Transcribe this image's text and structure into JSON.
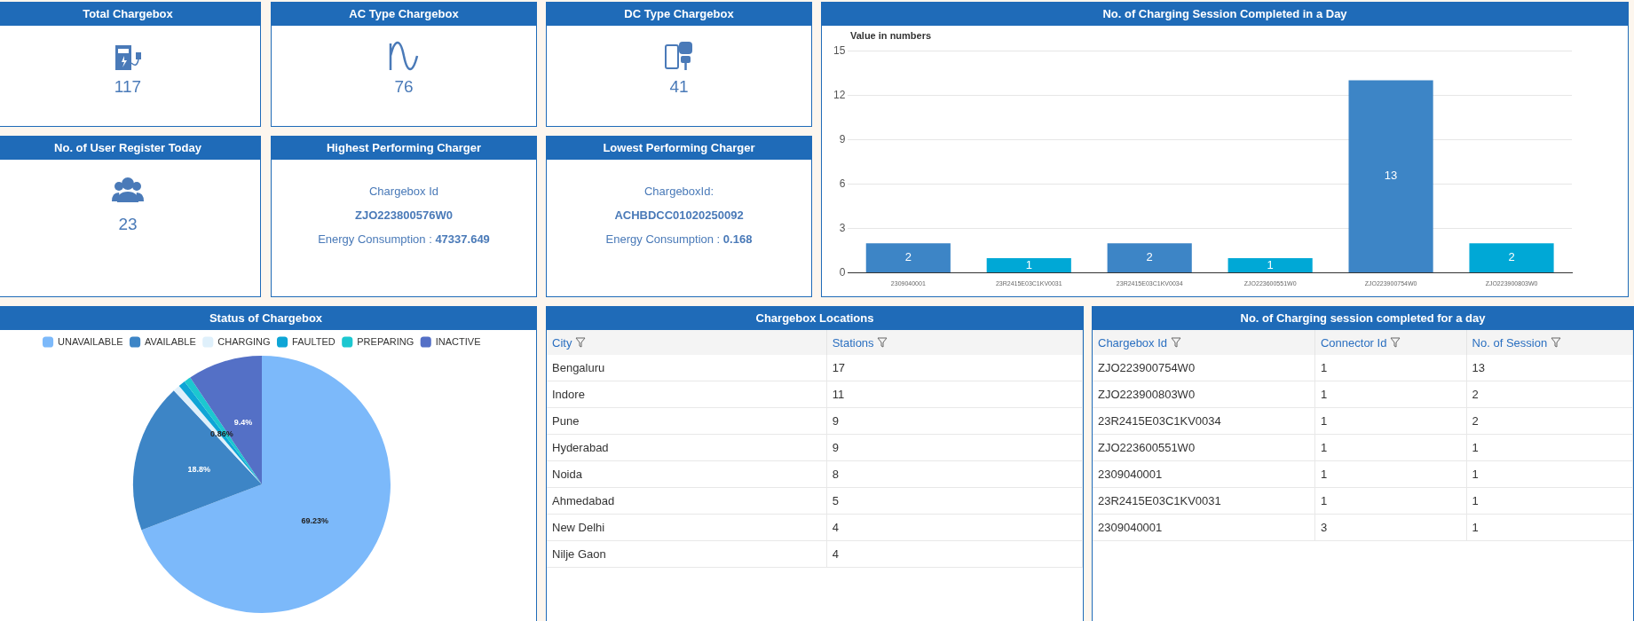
{
  "chart_data": [
    {
      "type": "other",
      "title": "Total Chargebox",
      "annotations": [
        "117"
      ]
    },
    {
      "type": "other",
      "title": "AC Type Chargebox",
      "annotations": [
        "76"
      ]
    },
    {
      "type": "other",
      "title": "DC Type Chargebox",
      "annotations": [
        "41"
      ]
    },
    {
      "type": "bar",
      "title": "No. of Charging Session Completed in a Day",
      "ylabel": "Value in numbers",
      "categories": [
        "2309040001",
        "23R2415E03C1KV0031",
        "23R2415E03C1KV0034",
        "ZJO223600551W0",
        "ZJO223900754W0",
        "ZJO223900803W0"
      ],
      "values": [
        2,
        1,
        2,
        1,
        13,
        2
      ],
      "colors": [
        "#3d85c6",
        "#00a8d6",
        "#3d85c6",
        "#00a8d6",
        "#3d85c6",
        "#00a8d6"
      ],
      "ylim": [
        0,
        15
      ],
      "yticks": [
        0,
        3,
        6,
        9,
        12,
        15
      ],
      "grid": "y",
      "data_labels": true
    },
    {
      "type": "other",
      "title": "No. of User Register Today",
      "annotations": [
        "23"
      ]
    },
    {
      "type": "other",
      "title": "Highest Performing Charger",
      "annotations": [
        "Chargebox Id",
        "ZJO223800576W0",
        "Energy Consumption :",
        "47337.649"
      ]
    },
    {
      "type": "other",
      "title": "Lowest Performing Charger",
      "annotations": [
        "ChargeboxId:",
        "ACHBDCC01020250092",
        "Energy Consumption :",
        "0.168"
      ]
    },
    {
      "type": "pie",
      "title": "Status of Chargebox",
      "categories": [
        "UNAVAILABLE",
        "AVAILABLE",
        "CHARGING",
        "FAULTED",
        "PREPARING",
        "INACTIVE"
      ],
      "values": [
        69.23,
        18.8,
        0.86,
        0.86,
        0.86,
        9.4
      ],
      "colors": [
        "#7cb9fa",
        "#3d85c6",
        "#dff0fb",
        "#0ea5d6",
        "#1cc7d0",
        "#5470c6"
      ],
      "value_labels": [
        "69.23%",
        "18.8%",
        null,
        "0.86%",
        null,
        "9.4%"
      ],
      "legend": "top"
    },
    {
      "type": "other",
      "title": "Chargebox Locations",
      "categories": [
        "City",
        "Stations"
      ],
      "cell_labels": [
        [
          "Bengaluru",
          "17"
        ],
        [
          "Indore",
          "11"
        ],
        [
          "Pune",
          "9"
        ],
        [
          "Hyderabad",
          "9"
        ],
        [
          "Noida",
          "8"
        ],
        [
          "Ahmedabad",
          "5"
        ],
        [
          "New Delhi",
          "4"
        ],
        [
          "Nilje Gaon",
          "4"
        ]
      ]
    },
    {
      "type": "other",
      "title": "No. of Charging session completed for a day",
      "categories": [
        "Chargebox Id",
        "Connector Id",
        "No. of Session"
      ],
      "cell_labels": [
        [
          "ZJO223900754W0",
          "1",
          "13"
        ],
        [
          "ZJO223900803W0",
          "1",
          "2"
        ],
        [
          "23R2415E03C1KV0034",
          "1",
          "2"
        ],
        [
          "ZJO223600551W0",
          "1",
          "1"
        ],
        [
          "2309040001",
          "1",
          "1"
        ],
        [
          "23R2415E03C1KV0031",
          "1",
          "1"
        ],
        [
          "2309040001",
          "3",
          "1"
        ]
      ]
    }
  ]
}
